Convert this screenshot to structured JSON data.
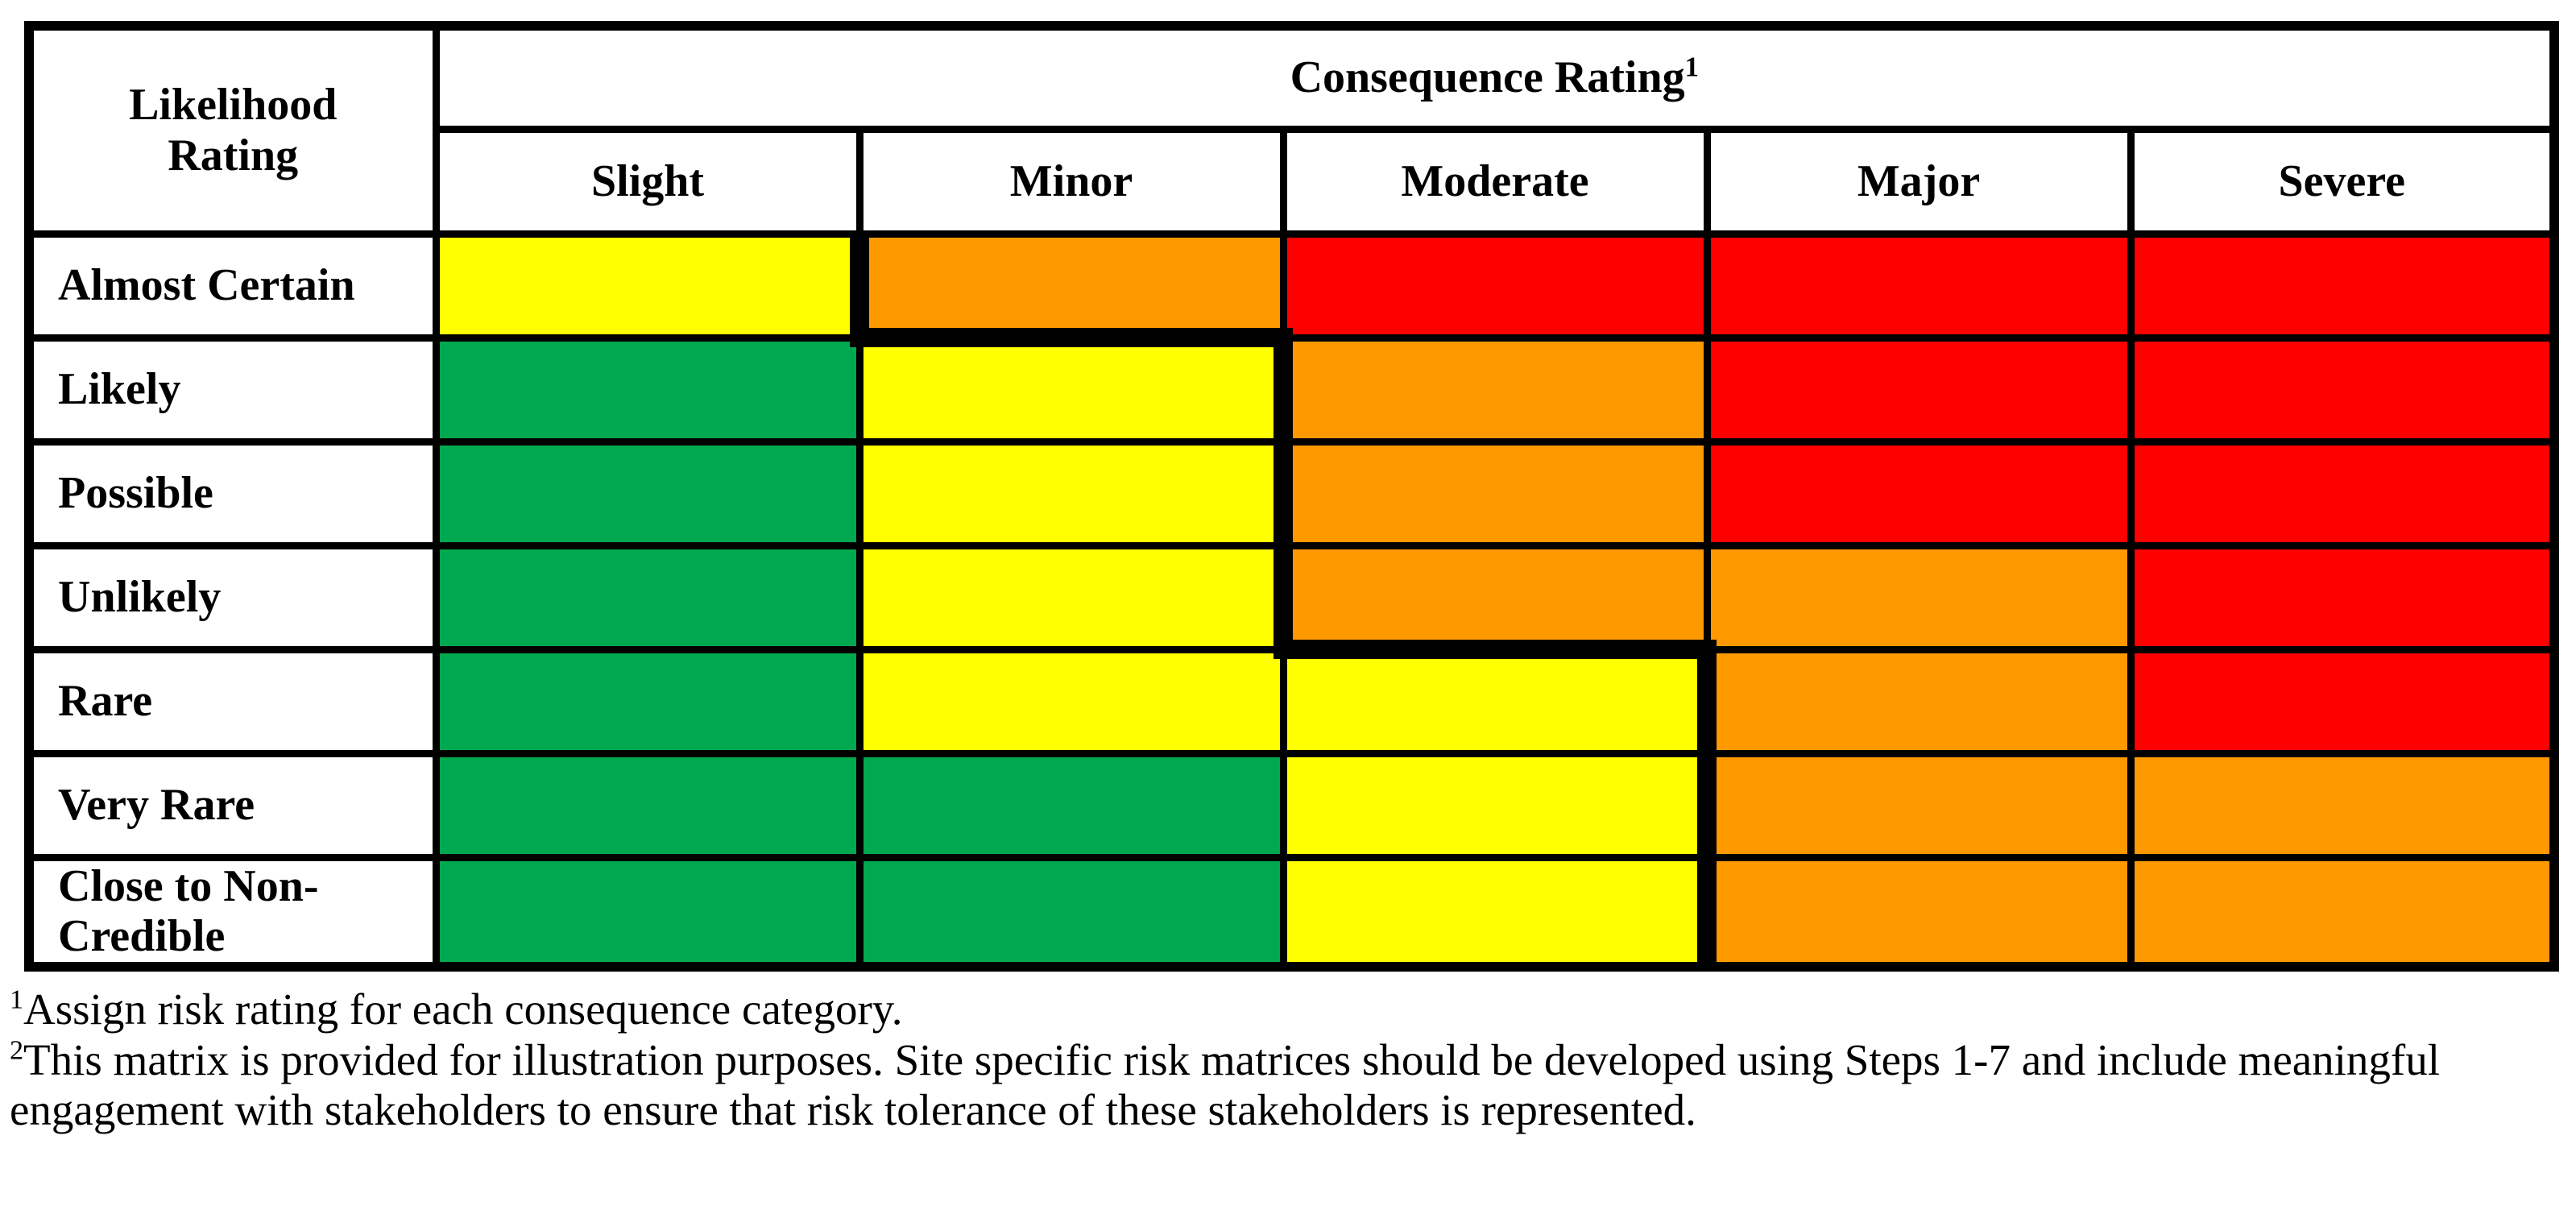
{
  "matrix": {
    "corner_header": "Likelihood Rating",
    "group_header": {
      "text": "Consequence Rating",
      "superscript": "1"
    },
    "columns": [
      "Slight",
      "Minor",
      "Moderate",
      "Major",
      "Severe"
    ],
    "rows": [
      {
        "label": "Almost Certain",
        "cells": [
          "yellow",
          "orange",
          "red",
          "red",
          "red"
        ]
      },
      {
        "label": "Likely",
        "cells": [
          "green",
          "yellow",
          "orange",
          "red",
          "red"
        ]
      },
      {
        "label": "Possible",
        "cells": [
          "green",
          "yellow",
          "orange",
          "red",
          "red"
        ]
      },
      {
        "label": "Unlikely",
        "cells": [
          "green",
          "yellow",
          "orange",
          "orange",
          "red"
        ]
      },
      {
        "label": "Rare",
        "cells": [
          "green",
          "yellow",
          "yellow",
          "orange",
          "red"
        ]
      },
      {
        "label": "Very Rare",
        "cells": [
          "green",
          "green",
          "yellow",
          "orange",
          "orange"
        ]
      },
      {
        "label": "Close to Non-Credible",
        "cells": [
          "green",
          "green",
          "yellow",
          "orange",
          "orange"
        ]
      }
    ],
    "risk_colors": {
      "green": "#00A94F",
      "yellow": "#FFFF00",
      "orange": "#FF9900",
      "red": "#FF0000"
    },
    "border_color": "#000000"
  },
  "footnotes": [
    {
      "superscript": "1",
      "text": "Assign risk rating for each consequence category."
    },
    {
      "superscript": "2",
      "text": "This matrix is provided for illustration purposes. Site specific risk matrices should be developed using Steps 1-7 and include meaningful engagement with stakeholders to ensure that risk tolerance of these stakeholders is represented."
    }
  ]
}
